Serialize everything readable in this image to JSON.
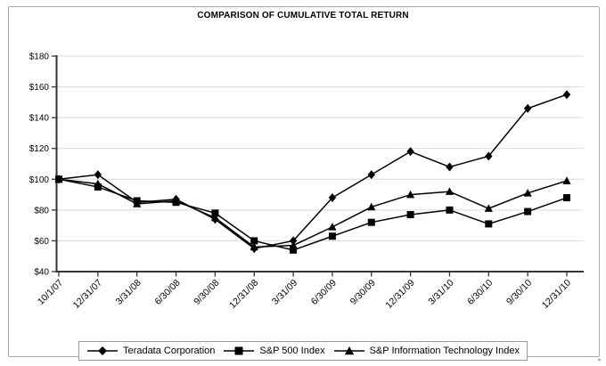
{
  "figure": {
    "title": "COMPARISON OF CUMULATIVE TOTAL RETURN"
  },
  "chart_data": {
    "type": "line",
    "title": "COMPARISON OF CUMULATIVE TOTAL RETURN",
    "x_labels": [
      "10/1/07",
      "12/31/07",
      "3/31/08",
      "6/30/08",
      "9/30/08",
      "12/31/08",
      "3/31/09",
      "6/30/09",
      "9/30/09",
      "12/31/09",
      "3/31/10",
      "6/30/10",
      "9/30/10",
      "12/31/10"
    ],
    "series": [
      {
        "name": "Teradata Corporation",
        "marker": "diamond",
        "values": [
          100,
          103,
          85,
          87,
          74,
          55,
          60,
          88,
          103,
          118,
          108,
          115,
          146,
          155
        ]
      },
      {
        "name": "S&P 500 Index",
        "marker": "square",
        "values": [
          100,
          95,
          86,
          85,
          78,
          60,
          54,
          63,
          72,
          77,
          80,
          71,
          79,
          88
        ]
      },
      {
        "name": "S&P Information Technology Index",
        "marker": "triangle",
        "values": [
          100,
          97,
          84,
          86,
          75,
          56,
          57,
          69,
          82,
          90,
          92,
          81,
          91,
          99
        ]
      }
    ],
    "y_ticks": [
      "$40",
      "$60",
      "$80",
      "$100",
      "$120",
      "$140",
      "$160",
      "$180"
    ],
    "ylim": [
      40,
      180
    ],
    "grid": true,
    "legend_position": "bottom",
    "colors": {
      "line": "#000000",
      "grid": "#dadada",
      "axis": "#333333",
      "text": "#000000"
    }
  }
}
